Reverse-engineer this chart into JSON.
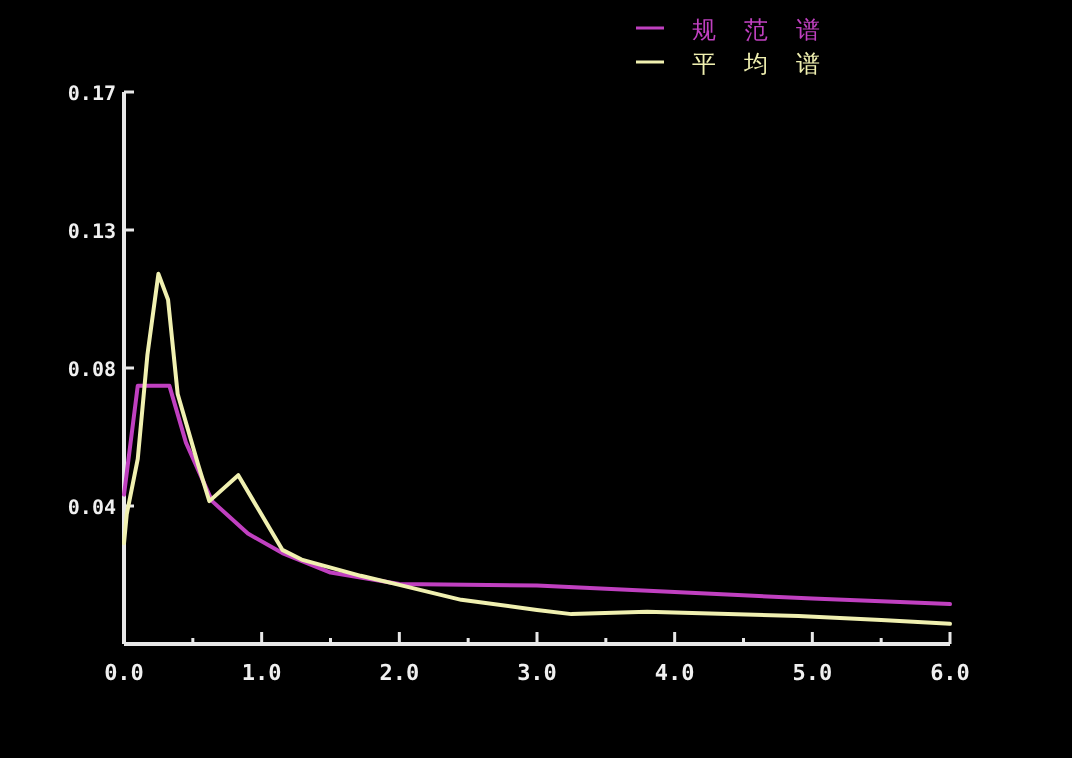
{
  "chart_data": {
    "type": "line",
    "xlim": [
      0,
      6
    ],
    "ylim": [
      0,
      0.17
    ],
    "xticks": [
      {
        "value": 0,
        "label": "0.0"
      },
      {
        "value": 0.5,
        "label": null
      },
      {
        "value": 1,
        "label": "1.0"
      },
      {
        "value": 1.5,
        "label": null
      },
      {
        "value": 2,
        "label": "2.0"
      },
      {
        "value": 2.5,
        "label": null
      },
      {
        "value": 3,
        "label": "3.0"
      },
      {
        "value": 3.5,
        "label": null
      },
      {
        "value": 4,
        "label": "4.0"
      },
      {
        "value": 4.5,
        "label": null
      },
      {
        "value": 5,
        "label": "5.0"
      },
      {
        "value": 5.5,
        "label": null
      },
      {
        "value": 6,
        "label": "6.0"
      }
    ],
    "yticks": [
      {
        "value": 0.0425,
        "label": "0.04"
      },
      {
        "value": 0.085,
        "label": "0.08"
      },
      {
        "value": 0.1275,
        "label": "0.13"
      },
      {
        "value": 0.17,
        "label": "0.17"
      }
    ],
    "legend": "top right",
    "series": [
      {
        "name": "规范谱",
        "color": "#c040c0",
        "x": [
          0,
          0.1,
          0.33,
          0.45,
          0.64,
          0.9,
          1.15,
          1.5,
          2.0,
          3.0,
          4.0,
          5.0,
          6.0
        ],
        "values": [
          0.046,
          0.0795,
          0.0795,
          0.062,
          0.044,
          0.034,
          0.028,
          0.022,
          0.0185,
          0.018,
          0.016,
          0.014,
          0.0123
        ]
      },
      {
        "name": "平均谱",
        "color": "#f0f0b0",
        "x": [
          0,
          0.02,
          0.1,
          0.17,
          0.25,
          0.32,
          0.39,
          0.54,
          0.62,
          0.83,
          1.15,
          1.29,
          1.72,
          1.97,
          2.45,
          3.0,
          3.25,
          3.8,
          4.9,
          5.5,
          6.0
        ],
        "values": [
          0.031,
          0.04,
          0.057,
          0.089,
          0.114,
          0.106,
          0.077,
          0.055,
          0.044,
          0.052,
          0.029,
          0.026,
          0.021,
          0.0185,
          0.0136,
          0.0105,
          0.0092,
          0.0099,
          0.0086,
          0.0074,
          0.0062
        ]
      }
    ]
  }
}
